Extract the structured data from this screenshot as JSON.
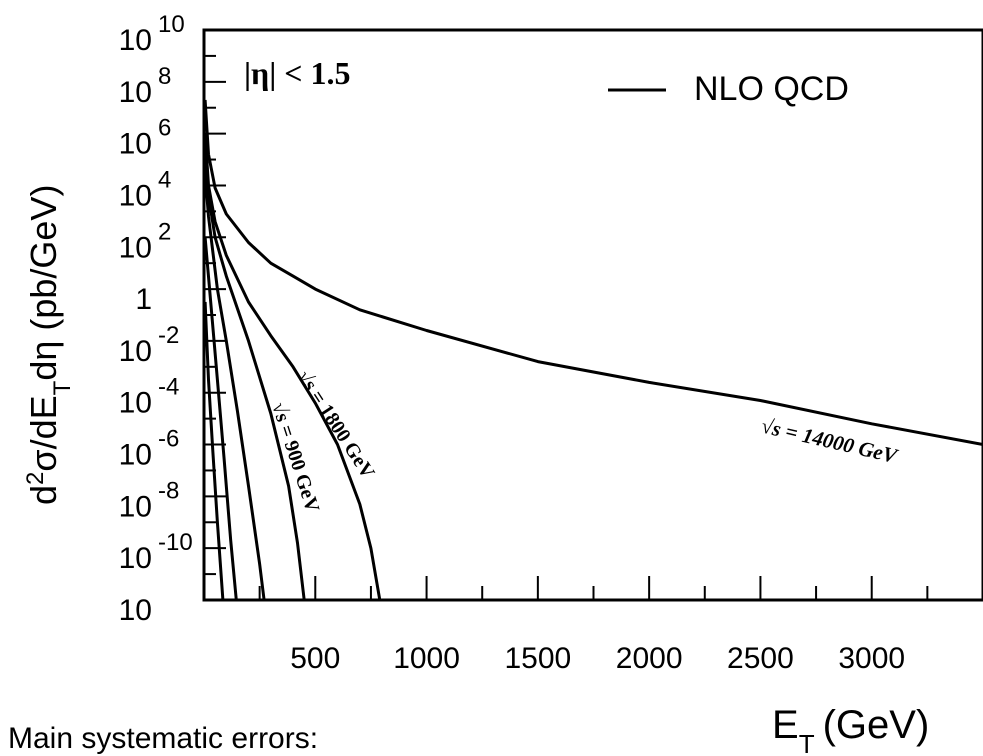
{
  "chart_data": {
    "type": "line",
    "xlabel_main": "E",
    "xlabel_sub": "T",
    "xlabel_unit": "(GeV)",
    "ylabel_parts": [
      "d",
      "2",
      "σ/dE",
      "T",
      "dη (pb/GeV)"
    ],
    "x_tick_labels": [
      "500",
      "1000",
      "1500",
      "2000",
      "2500",
      "3000"
    ],
    "y_tick_labels": [
      {
        "base": "10",
        "exp": "10"
      },
      {
        "base": "10",
        "exp": "8"
      },
      {
        "base": "10",
        "exp": "6"
      },
      {
        "base": "10",
        "exp": "4"
      },
      {
        "base": "10",
        "exp": "2"
      },
      {
        "base": "1",
        "exp": ""
      },
      {
        "base": "10",
        "exp": "-2"
      },
      {
        "base": "10",
        "exp": "-4"
      },
      {
        "base": "10",
        "exp": "-6"
      },
      {
        "base": "10",
        "exp": "-8"
      },
      {
        "base": "10",
        "exp": "-10"
      },
      {
        "base": "10",
        "exp": ""
      }
    ],
    "xlim": [
      0,
      3500
    ],
    "ylim_log10": [
      -12,
      10
    ],
    "y_scale": "log",
    "legend": {
      "label": "NLO QCD",
      "placement": "top-right"
    },
    "annotation_eta": "|η| < 1.5",
    "series": [
      {
        "name": "√s = 14000 GeV",
        "x": [
          5,
          20,
          50,
          100,
          200,
          300,
          400,
          500,
          700,
          1000,
          1500,
          2000,
          2500,
          3000,
          3500
        ],
        "y_log10": [
          7.3,
          5.2,
          3.9,
          2.9,
          1.8,
          1.0,
          0.5,
          0.0,
          -0.8,
          -1.6,
          -2.8,
          -3.6,
          -4.3,
          -5.2,
          -6.0
        ]
      },
      {
        "name": "√s = 1800 GeV",
        "x": [
          5,
          20,
          50,
          100,
          200,
          300,
          400,
          500,
          600,
          700,
          750,
          790
        ],
        "y_log10": [
          6.0,
          4.0,
          2.6,
          1.3,
          -0.5,
          -1.8,
          -3.0,
          -4.4,
          -6.0,
          -8.3,
          -10.0,
          -12.0
        ]
      },
      {
        "name": "√s = 900 GeV",
        "x": [
          5,
          20,
          50,
          100,
          200,
          300,
          380,
          420,
          450
        ],
        "y_log10": [
          5.3,
          3.6,
          2.0,
          0.5,
          -2.0,
          -4.8,
          -7.6,
          -9.8,
          -12.0
        ]
      },
      {
        "name": "",
        "x": [
          5,
          20,
          60,
          100,
          150,
          200,
          250,
          270
        ],
        "y_log10": [
          4.5,
          2.8,
          0.0,
          -2.0,
          -4.7,
          -7.6,
          -10.6,
          -12.0
        ]
      },
      {
        "name": "",
        "x": [
          5,
          30,
          60,
          90,
          120,
          145
        ],
        "y_log10": [
          2.0,
          -0.5,
          -3.5,
          -6.5,
          -9.7,
          -12.0
        ]
      },
      {
        "name": "",
        "x": [
          5,
          20,
          40,
          60,
          85
        ],
        "y_log10": [
          -0.5,
          -3.5,
          -6.3,
          -9.0,
          -12.0
        ]
      }
    ]
  },
  "footer_text": "Main systematic errors:"
}
